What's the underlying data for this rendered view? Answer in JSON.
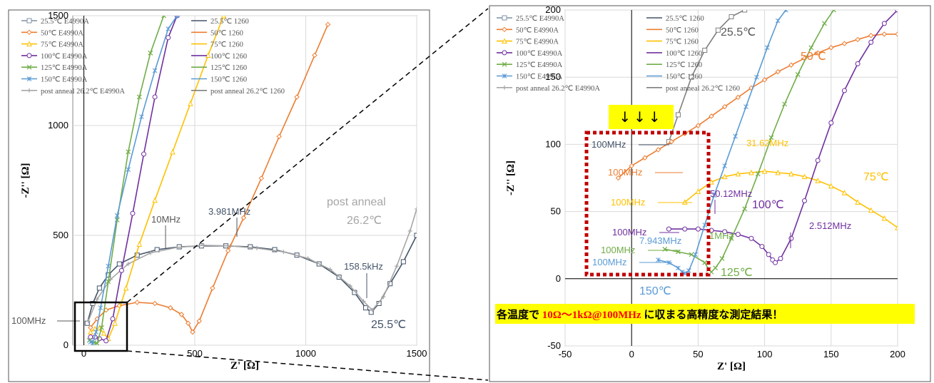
{
  "chart_data": [
    {
      "type": "line",
      "panel": "overview",
      "xlabel": "Z' [Ω]",
      "ylabel": "-Z'' [Ω]",
      "xlim": [
        -50,
        1500
      ],
      "ylim": [
        0,
        1500
      ],
      "xticks": [
        "0",
        "500",
        "1000",
        "1500"
      ],
      "yticks": [
        "0",
        "500",
        "1000",
        "1500"
      ],
      "grid": true,
      "legend_position": "top-left",
      "legend": [
        {
          "name": "25.5℃ E4990A",
          "color": "#7f8fa6",
          "marker": "square"
        },
        {
          "name": "50℃ E4990A",
          "color": "#ed7d31",
          "marker": "diamond"
        },
        {
          "name": "75℃ E4990A",
          "color": "#ffc000",
          "marker": "triangle"
        },
        {
          "name": "100℃ E4990A",
          "color": "#7030a0",
          "marker": "circle"
        },
        {
          "name": "125℃ E4990A",
          "color": "#70ad47",
          "marker": "x"
        },
        {
          "name": "150℃ E4990A",
          "color": "#5b9bd5",
          "marker": "star"
        },
        {
          "name": "post anneal 26.2℃ E4990A",
          "color": "#a6a6a6",
          "marker": "plus"
        },
        {
          "name": "25.5℃ 1260",
          "color": "#44546a",
          "marker": "none"
        },
        {
          "name": "50℃ 1260",
          "color": "#ed7d31",
          "marker": "none"
        },
        {
          "name": "75℃ 1260",
          "color": "#ffc000",
          "marker": "none"
        },
        {
          "name": "100℃ 1260",
          "color": "#7030a0",
          "marker": "none"
        },
        {
          "name": "125℃ 1260",
          "color": "#70ad47",
          "marker": "none"
        },
        {
          "name": "150℃ 1260",
          "color": "#5b9bd5",
          "marker": "none"
        },
        {
          "name": "post anneal 26.2℃ 1260",
          "color": "#7f7f7f",
          "marker": "none"
        }
      ],
      "series": [
        {
          "id": "t25",
          "color": "#44546a",
          "marker": "square",
          "x": [
            15,
            40,
            70,
            110,
            160,
            240,
            330,
            430,
            530,
            640,
            750,
            860,
            960,
            1060,
            1150,
            1220,
            1270,
            1295,
            1330,
            1380,
            1440,
            1500
          ],
          "y": [
            100,
            190,
            260,
            320,
            370,
            410,
            435,
            448,
            452,
            452,
            448,
            435,
            410,
            370,
            310,
            240,
            170,
            150,
            190,
            280,
            380,
            500
          ]
        },
        {
          "id": "t26",
          "color": "#a6a6a6",
          "marker": "plus",
          "x": [
            20,
            60,
            120,
            200,
            300,
            420,
            540,
            660,
            780,
            900,
            1010,
            1110,
            1200,
            1260,
            1300,
            1350,
            1410,
            1470,
            1500
          ],
          "y": [
            110,
            210,
            300,
            370,
            420,
            445,
            455,
            452,
            442,
            425,
            395,
            345,
            270,
            200,
            160,
            220,
            360,
            520,
            620
          ]
        },
        {
          "id": "t50",
          "color": "#ed7d31",
          "marker": "diamond",
          "x": [
            30,
            60,
            100,
            160,
            240,
            320,
            390,
            440,
            470,
            490,
            520,
            580,
            650,
            720,
            800,
            880,
            960,
            1040,
            1100
          ],
          "y": [
            80,
            120,
            160,
            180,
            195,
            190,
            170,
            140,
            100,
            60,
            110,
            260,
            430,
            580,
            760,
            950,
            1130,
            1320,
            1460
          ]
        },
        {
          "id": "t75",
          "color": "#ffc000",
          "marker": "triangle",
          "x": [
            30,
            50,
            70,
            90,
            110,
            140,
            190,
            250,
            320,
            400,
            480,
            560,
            630
          ],
          "y": [
            60,
            75,
            78,
            55,
            30,
            100,
            260,
            460,
            660,
            880,
            1100,
            1320,
            1500
          ]
        },
        {
          "id": "t100",
          "color": "#7030a0",
          "marker": "circle",
          "x": [
            30,
            50,
            70,
            100,
            130,
            170,
            220,
            270,
            320,
            380,
            420
          ],
          "y": [
            37,
            37,
            30,
            20,
            120,
            340,
            600,
            870,
            1130,
            1400,
            1500
          ]
        },
        {
          "id": "t125",
          "color": "#70ad47",
          "marker": "x",
          "x": [
            25,
            45,
            60,
            80,
            110,
            150,
            200,
            250,
            300,
            360
          ],
          "y": [
            22,
            12,
            8,
            80,
            290,
            570,
            880,
            1130,
            1330,
            1500
          ]
        },
        {
          "id": "t150",
          "color": "#5b9bd5",
          "marker": "star",
          "x": [
            30,
            40,
            55,
            75,
            110,
            150,
            200,
            260,
            320,
            380,
            420
          ],
          "y": [
            15,
            8,
            60,
            170,
            360,
            590,
            800,
            1040,
            1250,
            1440,
            1500
          ]
        }
      ],
      "annotations": [
        {
          "text": "10MHz",
          "color": "#595959"
        },
        {
          "text": "3.981MHz",
          "color": "#44546a"
        },
        {
          "text": "158.5kHz",
          "color": "#44546a"
        },
        {
          "text": "100MHz",
          "color": "#595959"
        },
        {
          "text": "25.5℃",
          "color": "#44546a"
        },
        {
          "text": "post anneal",
          "color": "#a6a6a6"
        },
        {
          "text": "26.2℃",
          "color": "#a6a6a6"
        }
      ]
    },
    {
      "type": "line",
      "panel": "zoom",
      "xlabel": "Z' [Ω]",
      "ylabel": "-Z'' [Ω]",
      "xlim": [
        -50,
        200
      ],
      "ylim": [
        -50,
        200
      ],
      "xticks": [
        "-50",
        "0",
        "50",
        "100",
        "150",
        "200"
      ],
      "yticks": [
        "-50",
        "0",
        "50",
        "100",
        "150",
        "200"
      ],
      "grid": true,
      "legend_position": "top-left",
      "series": [
        {
          "id": "z25",
          "color": "#7f7f7f",
          "marker": "square",
          "x": [
            28,
            35,
            45,
            55,
            65,
            75,
            85,
            92
          ],
          "y": [
            102,
            122,
            150,
            170,
            185,
            195,
            200,
            205
          ]
        },
        {
          "id": "z50",
          "color": "#ed7d31",
          "marker": "diamond",
          "x": [
            -10,
            0,
            10,
            20,
            30,
            40,
            50,
            60,
            70,
            80,
            90,
            100,
            110,
            120,
            130,
            140,
            150,
            160,
            170,
            180,
            190,
            200
          ],
          "y": [
            75,
            84,
            90,
            96,
            102,
            108,
            114,
            121,
            128,
            135,
            142,
            148,
            154,
            159,
            164,
            168,
            172,
            175,
            178,
            181,
            182,
            182
          ]
        },
        {
          "id": "z75",
          "color": "#ffc000",
          "marker": "triangle",
          "x": [
            40,
            50,
            60,
            70,
            80,
            90,
            100,
            110,
            120,
            130,
            140,
            150,
            160,
            170,
            180,
            190,
            200
          ],
          "y": [
            57,
            65,
            72,
            76,
            78,
            79,
            80,
            79,
            78,
            76,
            73,
            69,
            64,
            57,
            51,
            45,
            38
          ]
        },
        {
          "id": "z100",
          "color": "#7030a0",
          "marker": "circle",
          "x": [
            28,
            40,
            50,
            60,
            70,
            80,
            90,
            98,
            103,
            106,
            108,
            112,
            120,
            130,
            140,
            150,
            160,
            170,
            180,
            190,
            200
          ],
          "y": [
            37,
            37,
            37,
            36,
            35,
            33,
            30,
            24,
            18,
            14,
            12,
            15,
            30,
            58,
            88,
            116,
            140,
            160,
            176,
            190,
            200
          ]
        },
        {
          "id": "z125",
          "color": "#70ad47",
          "marker": "x",
          "x": [
            25,
            35,
            45,
            55,
            58,
            60,
            63,
            68,
            75,
            85,
            95,
            105,
            115,
            125,
            135,
            145,
            152
          ],
          "y": [
            22,
            20,
            18,
            12,
            7,
            5,
            8,
            15,
            30,
            52,
            78,
            105,
            130,
            152,
            172,
            190,
            200
          ]
        },
        {
          "id": "z150",
          "color": "#5b9bd5",
          "marker": "star",
          "x": [
            20,
            28,
            35,
            38,
            40,
            43,
            48,
            55,
            62,
            70,
            78,
            86,
            94,
            102,
            110,
            116
          ],
          "y": [
            14,
            12,
            8,
            5,
            4,
            6,
            18,
            40,
            62,
            84,
            106,
            128,
            150,
            172,
            192,
            200
          ]
        }
      ],
      "annotations": [
        {
          "text": "25.5℃",
          "color": "#595959"
        },
        {
          "text": "50℃",
          "color": "#ed7d31"
        },
        {
          "text": "31.62MHz",
          "color": "#ffc000"
        },
        {
          "text": "75℃",
          "color": "#ffc000"
        },
        {
          "text": "50.12MHz",
          "color": "#7030a0"
        },
        {
          "text": "100℃",
          "color": "#7030a0"
        },
        {
          "text": "2.512MHz",
          "color": "#7030a0"
        },
        {
          "text": "7.943MHz",
          "color": "#5b9bd5"
        },
        {
          "text": "1MHz",
          "color": "#70ad47"
        },
        {
          "text": "125℃",
          "color": "#70ad47"
        },
        {
          "text": "150℃",
          "color": "#5b9bd5"
        },
        {
          "text": "100MHz",
          "color": "#44546a"
        },
        {
          "text": "100MHz",
          "color": "#ed7d31"
        },
        {
          "text": "100MHz",
          "color": "#ffc000"
        },
        {
          "text": "100MHz",
          "color": "#7030a0"
        },
        {
          "text": "100MHz",
          "color": "#70ad47"
        },
        {
          "text": "100MHz",
          "color": "#5b9bd5"
        }
      ]
    }
  ],
  "arrows_label": "↓↓↓",
  "banner": {
    "prefix": "各温度で ",
    "highlight": "10Ω～1kΩ@100MHz",
    "suffix": " に収まる高精度な測定結果！"
  }
}
